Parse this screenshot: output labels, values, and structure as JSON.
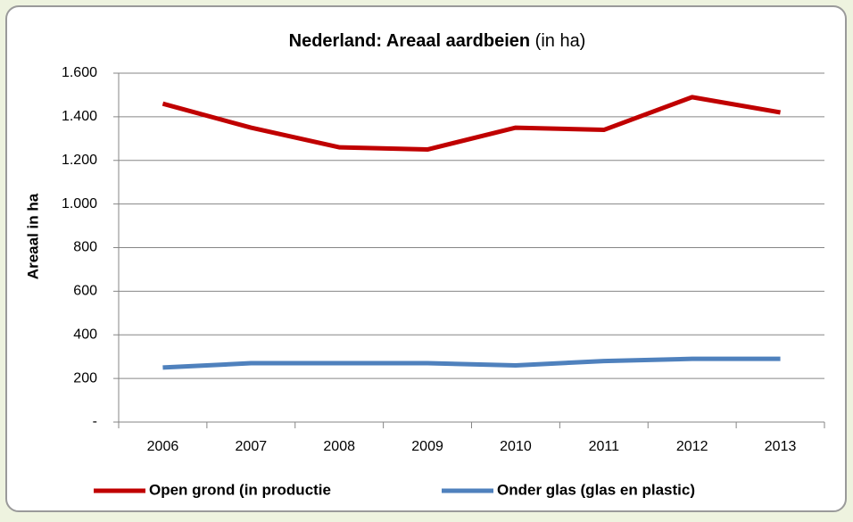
{
  "chart_data": {
    "type": "line",
    "title": [
      "Nederland: Areaal aardbeien",
      "(in ha)"
    ],
    "ylabel": "Areaal in ha",
    "categories": [
      "2006",
      "2007",
      "2008",
      "2009",
      "2010",
      "2011",
      "2012",
      "2013"
    ],
    "series": [
      {
        "name": "Open grond (in productie",
        "color": "#c00000",
        "values": [
          1460,
          1350,
          1260,
          1250,
          1350,
          1340,
          1490,
          1420
        ]
      },
      {
        "name": "Onder glas (glas en plastic)",
        "color": "#4f81bd",
        "values": [
          250,
          270,
          270,
          270,
          260,
          280,
          290,
          290
        ]
      }
    ],
    "ylim": [
      0,
      1600
    ],
    "yticks": [
      {
        "value": 0,
        "label": "-"
      },
      200,
      400,
      600,
      800,
      {
        "value": 1000,
        "label": "1.000"
      },
      {
        "value": 1200,
        "label": "1.200"
      },
      {
        "value": 1400,
        "label": "1.400"
      },
      {
        "value": 1600,
        "label": "1.600"
      }
    ],
    "grid": true,
    "legend": "bottom"
  }
}
